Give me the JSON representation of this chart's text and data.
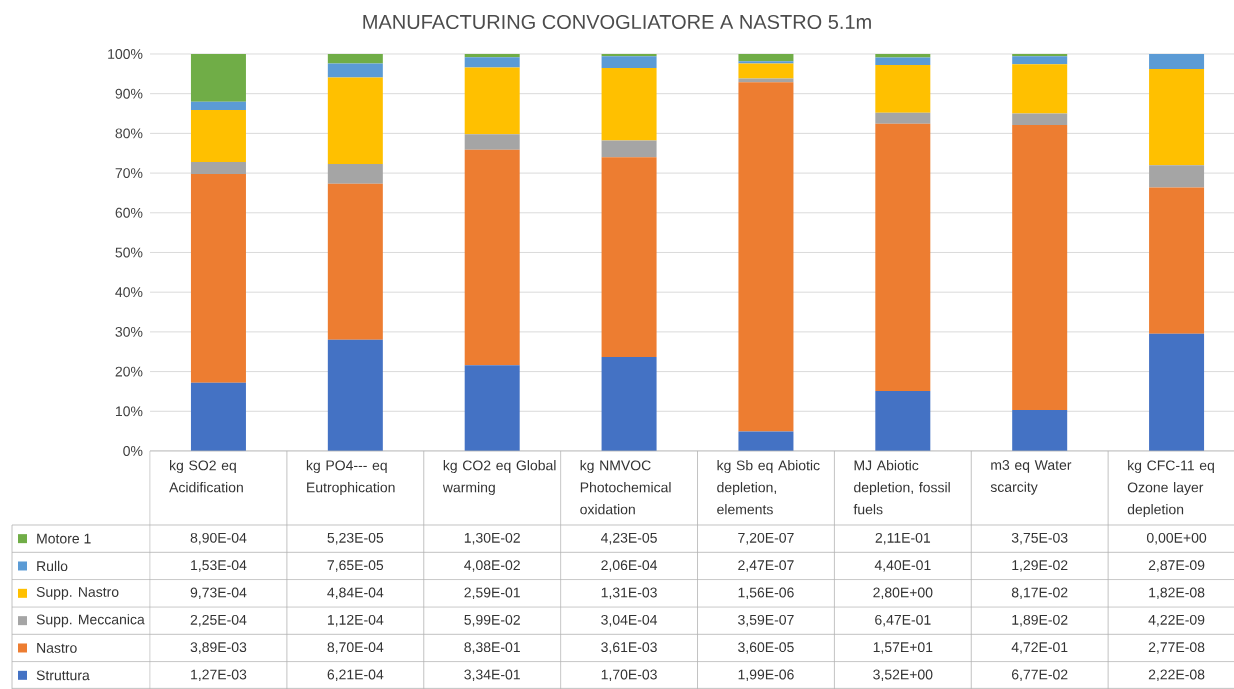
{
  "chart_data": [
    {
      "type": "bar",
      "stacked": true,
      "title": "MANUFACTURING CONVOGLIATORE A NASTRO 5.1m",
      "categories": [
        "kg SO2 eq Acidification",
        "kg PO4--- eq Eutrophication",
        "kg CO2 eq Global warming",
        "kg NMVOC Photochemical oxidation",
        "kg Sb eq Abiotic depletion, elements",
        "MJ Abiotic depletion, fossil fuels",
        "m3 eq Water scarcity",
        "kg CFC-11 eq Ozone layer depletion"
      ],
      "series": [
        {
          "name": "Struttura",
          "color": "#4472c4",
          "values": [
            17.2,
            28.0,
            21.6,
            23.7,
            4.9,
            15.1,
            10.3,
            29.5
          ]
        },
        {
          "name": "Nastro",
          "color": "#ed7d31",
          "values": [
            52.6,
            39.3,
            54.3,
            50.3,
            88.0,
            67.3,
            71.8,
            36.9
          ]
        },
        {
          "name": "Supp. Meccanica",
          "color": "#a5a5a5",
          "values": [
            3.0,
            5.0,
            3.9,
            4.2,
            0.9,
            2.8,
            2.9,
            5.6
          ]
        },
        {
          "name": "Supp. Nastro",
          "color": "#ffc000",
          "values": [
            13.1,
            21.8,
            16.8,
            18.3,
            3.8,
            12.0,
            12.4,
            24.2
          ]
        },
        {
          "name": "Rullo",
          "color": "#5b9bd5",
          "values": [
            2.1,
            3.5,
            2.6,
            2.9,
            0.6,
            1.9,
            2.0,
            3.8
          ]
        },
        {
          "name": "Motore 1",
          "color": "#70ad47",
          "values": [
            12.0,
            2.4,
            0.8,
            0.6,
            1.8,
            0.9,
            0.6,
            0.0
          ]
        }
      ],
      "ylim": [
        0,
        100
      ],
      "yticks": [
        {
          "value": 0,
          "label": "0%"
        },
        {
          "value": 10,
          "label": "10%"
        },
        {
          "value": 20,
          "label": "20%"
        },
        {
          "value": 30,
          "label": "30%"
        },
        {
          "value": 40,
          "label": "40%"
        },
        {
          "value": 50,
          "label": "50%"
        },
        {
          "value": 60,
          "label": "60%"
        },
        {
          "value": 70,
          "label": "70%"
        },
        {
          "value": 80,
          "label": "80%"
        },
        {
          "value": 90,
          "label": "90%"
        },
        {
          "value": 100,
          "label": "100%"
        }
      ],
      "grid": "y",
      "legend": "bottom"
    },
    {
      "type": "other",
      "cell_labels": [
        [
          "8,90E-04",
          "5,23E-05",
          "1,30E-02",
          "4,23E-05",
          "7,20E-07",
          "2,11E-01",
          "3,75E-03",
          "0,00E+00"
        ],
        [
          "1,53E-04",
          "7,65E-05",
          "4,08E-02",
          "2,06E-04",
          "2,47E-07",
          "4,40E-01",
          "1,29E-02",
          "2,87E-09"
        ],
        [
          "9,73E-04",
          "4,84E-04",
          "2,59E-01",
          "1,31E-03",
          "1,56E-06",
          "2,80E+00",
          "8,17E-02",
          "1,82E-08"
        ],
        [
          "2,25E-04",
          "1,12E-04",
          "5,99E-02",
          "3,04E-04",
          "3,59E-07",
          "6,47E-01",
          "1,89E-02",
          "4,22E-09"
        ],
        [
          "3,89E-03",
          "8,70E-04",
          "8,38E-01",
          "3,61E-03",
          "3,60E-05",
          "1,57E+01",
          "4,72E-01",
          "2,77E-08"
        ],
        [
          "1,27E-03",
          "6,21E-04",
          "3,34E-01",
          "1,70E-03",
          "1,99E-06",
          "3,52E+00",
          "6,77E-02",
          "2,22E-08"
        ]
      ]
    }
  ]
}
